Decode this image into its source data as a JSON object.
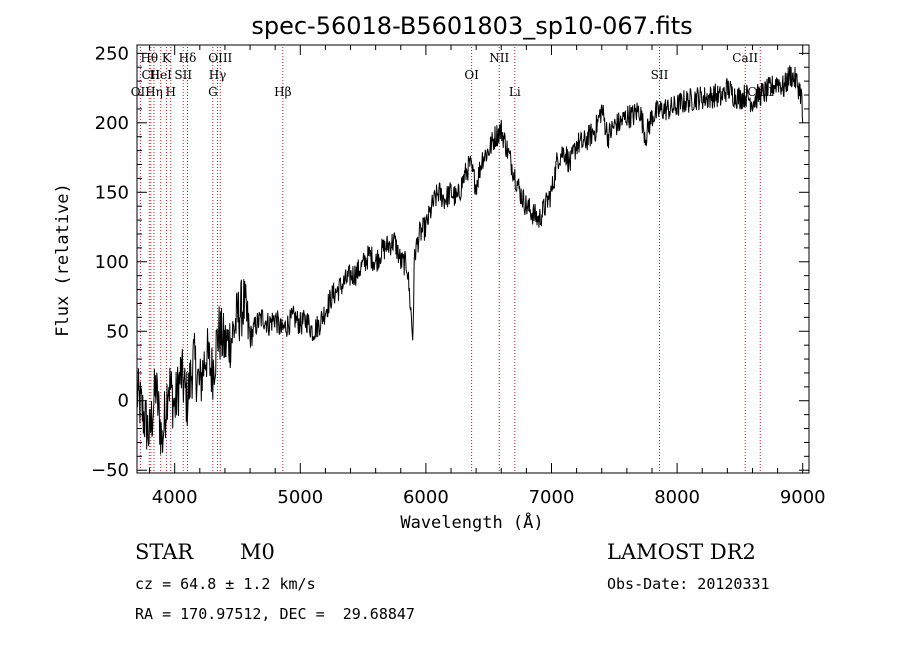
{
  "title": "spec-56018-B5601803_sp10-067.fits",
  "chart_data": {
    "type": "line",
    "title": "spec-56018-B5601803_sp10-067.fits",
    "xlabel": "Wavelength (Å)",
    "ylabel": "Flux (relative)",
    "xlim": [
      3700,
      9050
    ],
    "ylim": [
      -52,
      256
    ],
    "x_ticks": [
      4000,
      5000,
      6000,
      7000,
      8000,
      9000
    ],
    "y_ticks": [
      -50,
      0,
      50,
      100,
      150,
      200,
      250
    ],
    "grid": false,
    "line_color": "#000000",
    "marker_color": "#b22222",
    "series": [
      {
        "x": [
          3700,
          3750,
          3800,
          3850,
          3900,
          3950,
          4000,
          4050,
          4100,
          4150,
          4200,
          4250,
          4300,
          4350,
          4400,
          4450,
          4500,
          4550,
          4600,
          4650,
          4700,
          4750,
          4800,
          4850,
          4900,
          4950,
          5000,
          5050,
          5100,
          5150,
          5200,
          5250,
          5300,
          5350,
          5400,
          5450,
          5500,
          5550,
          5600,
          5650,
          5700,
          5750,
          5800,
          5850,
          5880,
          5895,
          5910,
          5950,
          6000,
          6050,
          6100,
          6150,
          6200,
          6250,
          6300,
          6350,
          6400,
          6450,
          6500,
          6550,
          6600,
          6650,
          6700,
          6750,
          6800,
          6850,
          6900,
          6950,
          7000,
          7050,
          7100,
          7150,
          7200,
          7250,
          7300,
          7350,
          7400,
          7450,
          7500,
          7550,
          7600,
          7650,
          7700,
          7750,
          7800,
          7850,
          7900,
          7950,
          8000,
          8050,
          8100,
          8150,
          8200,
          8250,
          8300,
          8350,
          8400,
          8450,
          8500,
          8550,
          8600,
          8650,
          8700,
          8750,
          8800,
          8850,
          8900,
          8950,
          8990,
          9000
        ],
        "y": [
          5,
          -10,
          -25,
          10,
          -30,
          15,
          -5,
          20,
          0,
          30,
          10,
          35,
          20,
          50,
          40,
          45,
          60,
          70,
          45,
          55,
          60,
          55,
          60,
          50,
          55,
          60,
          55,
          58,
          50,
          55,
          65,
          75,
          80,
          85,
          90,
          92,
          98,
          105,
          100,
          108,
          112,
          115,
          100,
          98,
          65,
          45,
          105,
          120,
          125,
          140,
          150,
          145,
          150,
          145,
          160,
          170,
          155,
          175,
          180,
          190,
          195,
          180,
          165,
          150,
          140,
          135,
          130,
          140,
          150,
          175,
          180,
          170,
          185,
          185,
          190,
          195,
          210,
          190,
          198,
          200,
          205,
          205,
          210,
          190,
          205,
          208,
          210,
          210,
          212,
          215,
          216,
          218,
          218,
          218,
          220,
          218,
          225,
          220,
          218,
          220,
          215,
          220,
          222,
          225,
          230,
          225,
          235,
          230,
          220,
          200
        ]
      }
    ],
    "line_markers": [
      {
        "label": "Hθ",
        "x": 3798,
        "row": 1
      },
      {
        "label": "CII",
        "x": 3810,
        "row": 2
      },
      {
        "label": "OII",
        "x": 3727,
        "row": 3
      },
      {
        "label": "HeI",
        "x": 3889,
        "row": 2
      },
      {
        "label": "Hη",
        "x": 3835,
        "row": 3
      },
      {
        "label": "K",
        "x": 3934,
        "row": 1
      },
      {
        "label": "SII",
        "x": 4068,
        "row": 2
      },
      {
        "label": "H",
        "x": 3969,
        "row": 3
      },
      {
        "label": "Hδ",
        "x": 4102,
        "row": 1
      },
      {
        "label": "OIII",
        "x": 4363,
        "row": 1
      },
      {
        "label": "Hγ",
        "x": 4341,
        "row": 2
      },
      {
        "label": "G",
        "x": 4304,
        "row": 3
      },
      {
        "label": "Hβ",
        "x": 4861,
        "row": 3
      },
      {
        "label": "OI",
        "x": 6364,
        "row": 2
      },
      {
        "label": "NII",
        "x": 6584,
        "row": 1
      },
      {
        "label": "Li",
        "x": 6708,
        "row": 3
      },
      {
        "label": "SII",
        "x": 7860,
        "row": 2
      },
      {
        "label": "CaII",
        "x": 8542,
        "row": 1
      },
      {
        "label": "CaII",
        "x": 8662,
        "row": 3
      }
    ]
  },
  "info": {
    "class": "STAR",
    "subclass": "M0",
    "survey": "LAMOST DR2",
    "cz": "cz = 64.8 ± 1.2 km/s",
    "obs_date": "Obs-Date: 20120331",
    "radec": "RA = 170.97512, DEC =  29.68847"
  }
}
